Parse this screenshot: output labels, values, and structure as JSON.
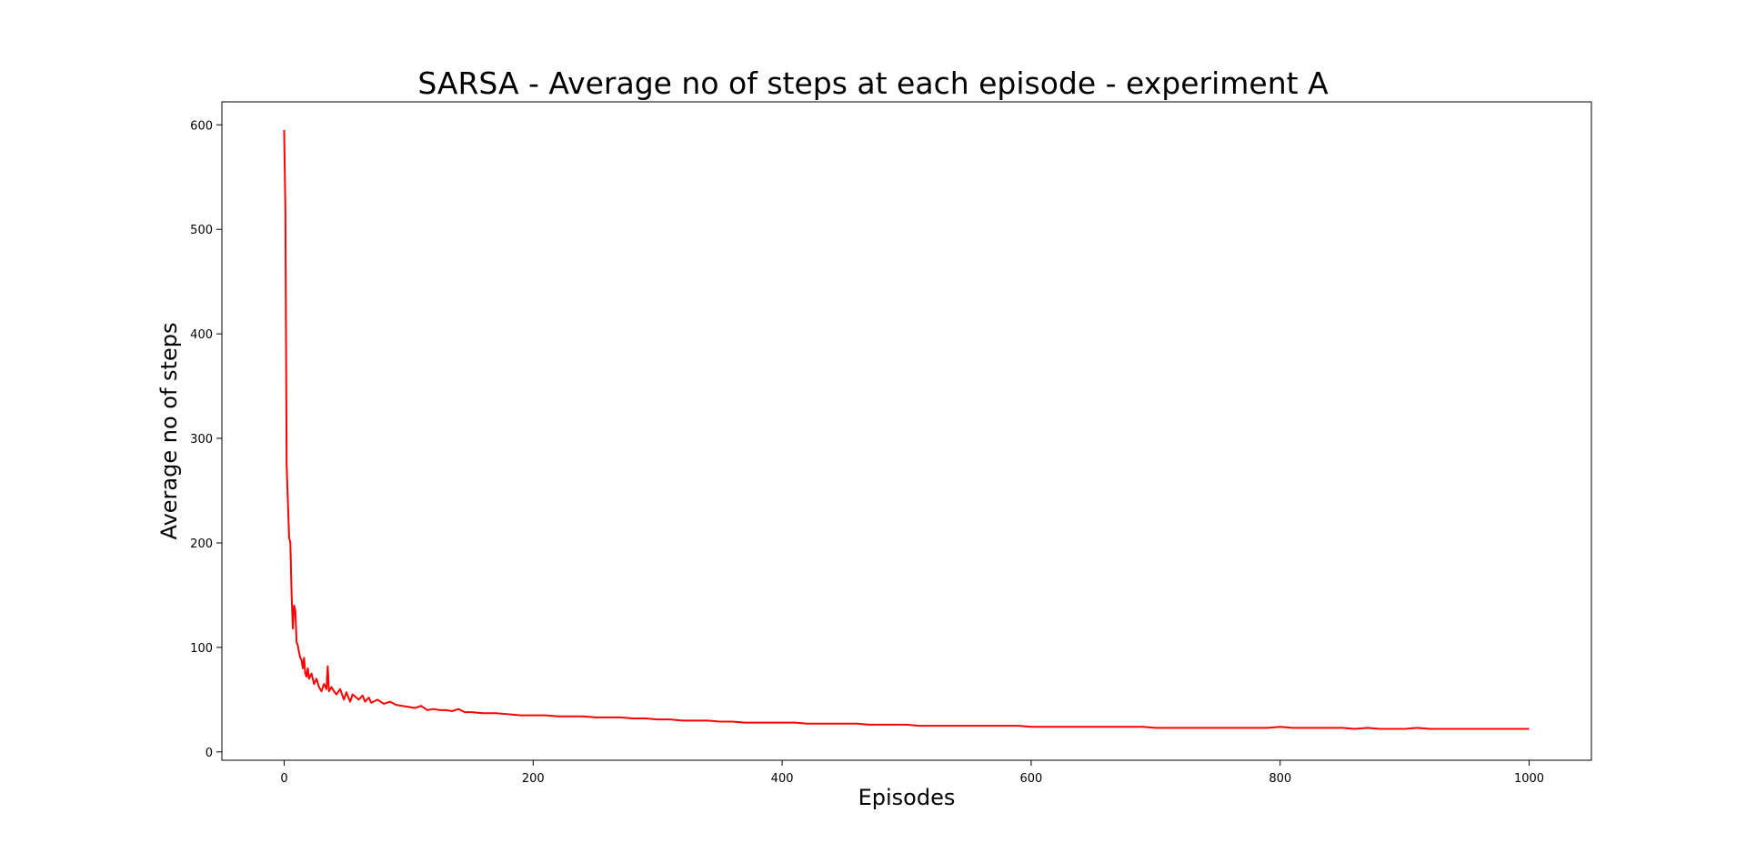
{
  "chart_data": {
    "type": "line",
    "title": "SARSA - Average no of steps at each episode - experiment A",
    "xlabel": "Episodes",
    "ylabel": "Average no of steps",
    "xlim": [
      -50,
      1050
    ],
    "ylim": [
      -8,
      622
    ],
    "xticks": [
      0,
      200,
      400,
      600,
      800,
      1000
    ],
    "yticks": [
      0,
      100,
      200,
      300,
      400,
      500,
      600
    ],
    "xtick_labels": [
      "0",
      "200",
      "400",
      "600",
      "800",
      "1000"
    ],
    "ytick_labels": [
      "0",
      "100",
      "200",
      "300",
      "400",
      "500",
      "600"
    ],
    "grid": false,
    "legend": "none",
    "series": [
      {
        "color": "#ff0000",
        "x": [
          0,
          1,
          2,
          3,
          4,
          5,
          6,
          7,
          8,
          9,
          10,
          11,
          12,
          13,
          14,
          15,
          16,
          17,
          18,
          19,
          20,
          22,
          24,
          26,
          28,
          30,
          32,
          34,
          35,
          36,
          38,
          40,
          42,
          45,
          48,
          50,
          53,
          55,
          58,
          60,
          63,
          65,
          68,
          70,
          75,
          80,
          85,
          90,
          95,
          100,
          105,
          110,
          115,
          120,
          125,
          130,
          135,
          140,
          145,
          150,
          160,
          170,
          180,
          190,
          200,
          210,
          220,
          230,
          240,
          250,
          260,
          270,
          280,
          290,
          300,
          310,
          320,
          330,
          340,
          350,
          360,
          370,
          380,
          390,
          400,
          410,
          420,
          430,
          440,
          450,
          460,
          470,
          480,
          490,
          500,
          510,
          520,
          530,
          540,
          550,
          560,
          570,
          580,
          590,
          600,
          610,
          620,
          630,
          640,
          650,
          660,
          670,
          680,
          690,
          700,
          710,
          720,
          730,
          740,
          750,
          760,
          770,
          780,
          790,
          800,
          810,
          820,
          830,
          840,
          850,
          860,
          870,
          880,
          890,
          900,
          910,
          920,
          930,
          940,
          950,
          960,
          970,
          980,
          990,
          1000
        ],
        "values": [
          595,
          520,
          275,
          240,
          205,
          200,
          150,
          118,
          140,
          135,
          105,
          102,
          95,
          90,
          88,
          80,
          90,
          75,
          72,
          80,
          70,
          75,
          65,
          70,
          62,
          58,
          65,
          60,
          82,
          58,
          62,
          58,
          55,
          60,
          50,
          57,
          48,
          55,
          52,
          50,
          54,
          48,
          52,
          47,
          50,
          46,
          48,
          45,
          44,
          43,
          42,
          44,
          40,
          41,
          40,
          40,
          39,
          41,
          38,
          38,
          37,
          37,
          36,
          35,
          35,
          35,
          34,
          34,
          34,
          33,
          33,
          33,
          32,
          32,
          31,
          31,
          30,
          30,
          30,
          29,
          29,
          28,
          28,
          28,
          28,
          28,
          27,
          27,
          27,
          27,
          27,
          26,
          26,
          26,
          26,
          25,
          25,
          25,
          25,
          25,
          25,
          25,
          25,
          25,
          24,
          24,
          24,
          24,
          24,
          24,
          24,
          24,
          24,
          24,
          23,
          23,
          23,
          23,
          23,
          23,
          23,
          23,
          23,
          23,
          24,
          23,
          23,
          23,
          23,
          23,
          22,
          23,
          22,
          22,
          22,
          23,
          22,
          22,
          22,
          22,
          22,
          22,
          22,
          22,
          22
        ]
      }
    ]
  }
}
